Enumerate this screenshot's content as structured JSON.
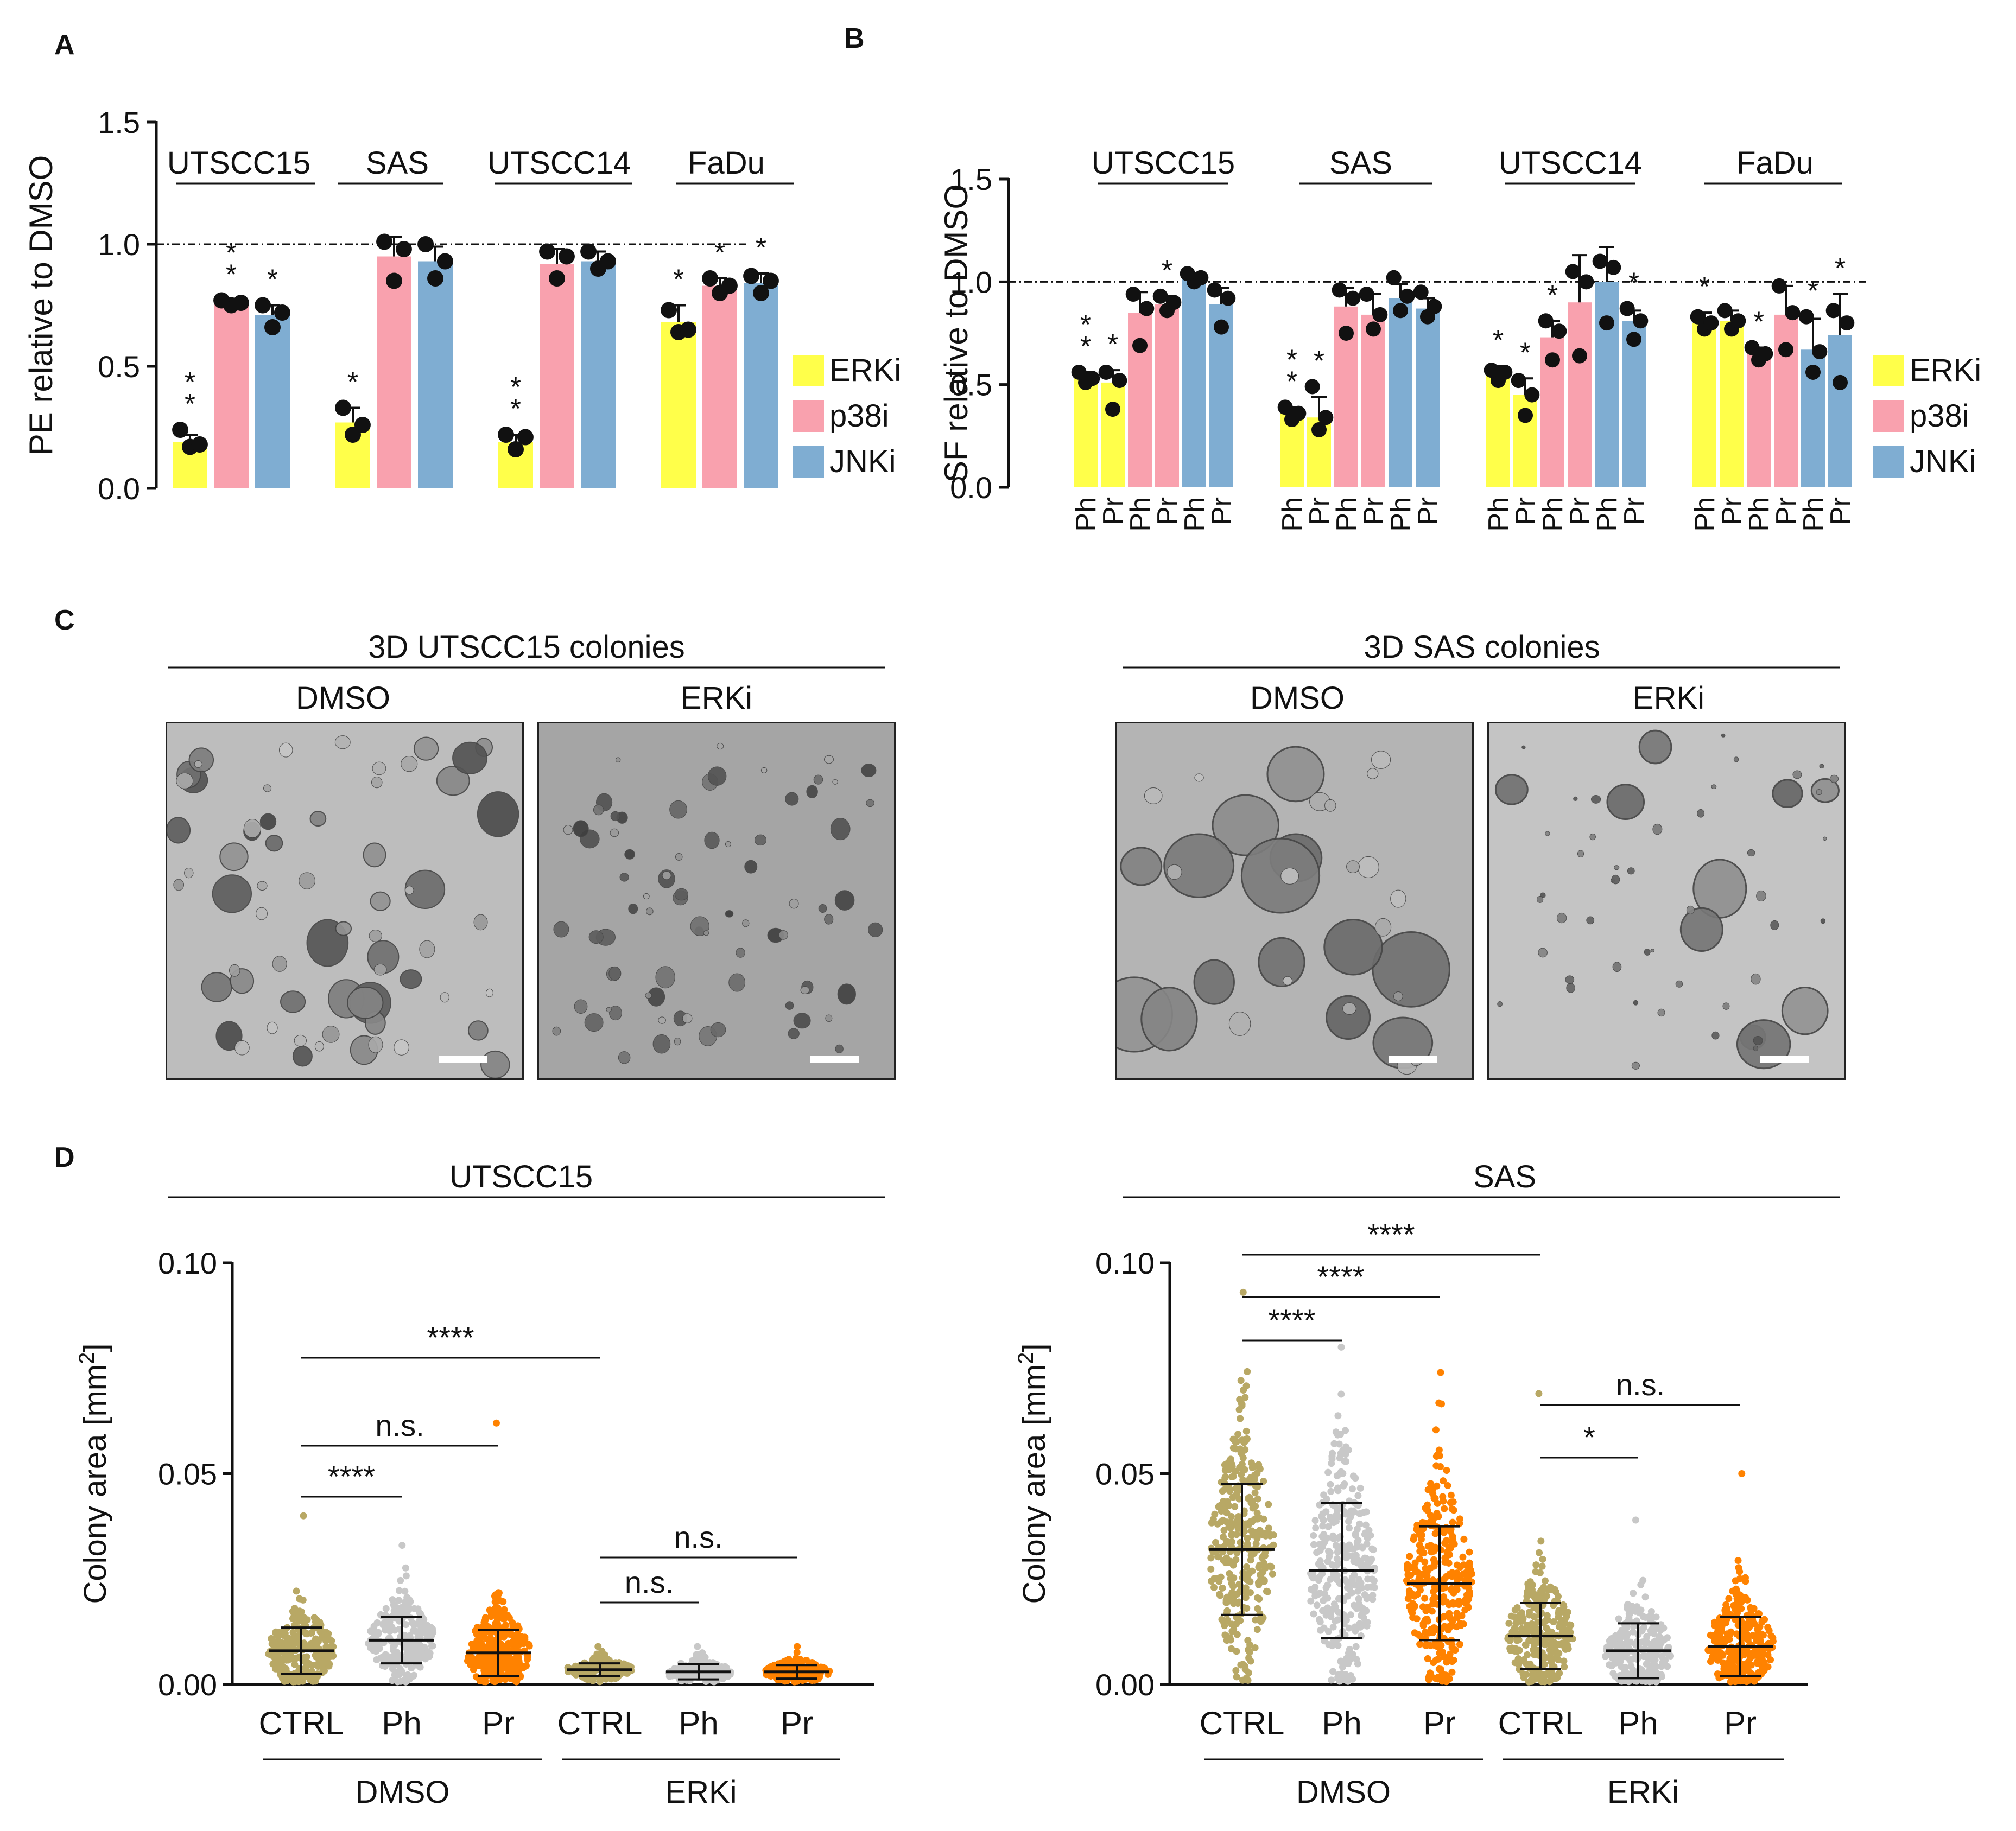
{
  "panels": {
    "a": "A",
    "b": "B",
    "c": "C",
    "d": "D"
  },
  "legend": [
    {
      "name": "ERKi",
      "color": "#ffff4a"
    },
    {
      "name": "p38i",
      "color": "#f9a1ae"
    },
    {
      "name": "JNKi",
      "color": "#7fadd2"
    }
  ],
  "colors": {
    "ctrl": "#b8a865",
    "ph": "#c8c8c8",
    "pr": "#ff8200",
    "bar_err": "#111111"
  },
  "chart_data": [
    {
      "id": "A",
      "type": "bar",
      "ylabel": "PE relative to DMSO",
      "ylim": [
        0,
        1.5
      ],
      "yticks": [
        "0.0",
        "0.5",
        "1.0",
        "1.5"
      ],
      "reference_line": 1.0,
      "groups": [
        "UTSCC15",
        "SAS",
        "UTSCC14",
        "FaDu"
      ],
      "bars": [
        {
          "group": "UTSCC15",
          "series": "ERKi",
          "value": 0.19,
          "err": 0.03,
          "points": [
            0.17,
            0.18,
            0.24
          ],
          "star": "**"
        },
        {
          "group": "UTSCC15",
          "series": "p38i",
          "value": 0.76,
          "err": 0.01,
          "points": [
            0.75,
            0.76,
            0.77
          ],
          "star": "**"
        },
        {
          "group": "UTSCC15",
          "series": "JNKi",
          "value": 0.71,
          "err": 0.04,
          "points": [
            0.66,
            0.72,
            0.75
          ],
          "star": "*"
        },
        {
          "group": "SAS",
          "series": "ERKi",
          "value": 0.27,
          "err": 0.06,
          "points": [
            0.22,
            0.26,
            0.33
          ],
          "star": "*"
        },
        {
          "group": "SAS",
          "series": "p38i",
          "value": 0.95,
          "err": 0.08,
          "points": [
            0.85,
            0.98,
            1.01
          ],
          "star": ""
        },
        {
          "group": "SAS",
          "series": "JNKi",
          "value": 0.93,
          "err": 0.06,
          "points": [
            0.86,
            0.93,
            1.0
          ],
          "star": ""
        },
        {
          "group": "UTSCC14",
          "series": "ERKi",
          "value": 0.19,
          "err": 0.03,
          "points": [
            0.16,
            0.21,
            0.22
          ],
          "star": "**"
        },
        {
          "group": "UTSCC14",
          "series": "p38i",
          "value": 0.92,
          "err": 0.06,
          "points": [
            0.86,
            0.95,
            0.97
          ],
          "star": ""
        },
        {
          "group": "UTSCC14",
          "series": "JNKi",
          "value": 0.93,
          "err": 0.04,
          "points": [
            0.9,
            0.93,
            0.97
          ],
          "star": ""
        },
        {
          "group": "FaDu",
          "series": "ERKi",
          "value": 0.68,
          "err": 0.07,
          "points": [
            0.64,
            0.65,
            0.73
          ],
          "star": "*"
        },
        {
          "group": "FaDu",
          "series": "p38i",
          "value": 0.83,
          "err": 0.03,
          "points": [
            0.8,
            0.83,
            0.86
          ],
          "star": "*"
        },
        {
          "group": "FaDu",
          "series": "JNKi",
          "value": 0.84,
          "err": 0.04,
          "points": [
            0.8,
            0.85,
            0.87
          ],
          "star": "*"
        }
      ]
    },
    {
      "id": "B",
      "type": "bar",
      "ylabel": "SF relative to DMSO",
      "ylim": [
        0,
        1.5
      ],
      "yticks": [
        "0.0",
        "0.5",
        "1.0",
        "1.5"
      ],
      "reference_line": 1.0,
      "groups": [
        "UTSCC15",
        "SAS",
        "UTSCC14",
        "FaDu"
      ],
      "bars": [
        {
          "group": "UTSCC15",
          "series": "ERKi",
          "cat": "Ph",
          "value": 0.53,
          "err": 0.03,
          "points": [
            0.51,
            0.53,
            0.56
          ],
          "star": "**"
        },
        {
          "group": "UTSCC15",
          "series": "ERKi",
          "cat": "Pr",
          "value": 0.51,
          "err": 0.06,
          "points": [
            0.38,
            0.52,
            0.56
          ],
          "star": "*"
        },
        {
          "group": "UTSCC15",
          "series": "p38i",
          "cat": "Ph",
          "value": 0.85,
          "err": 0.1,
          "points": [
            0.69,
            0.87,
            0.94
          ],
          "star": ""
        },
        {
          "group": "UTSCC15",
          "series": "p38i",
          "cat": "Pr",
          "value": 0.89,
          "err": 0.04,
          "points": [
            0.86,
            0.9,
            0.93
          ],
          "star": "*"
        },
        {
          "group": "UTSCC15",
          "series": "JNKi",
          "cat": "Ph",
          "value": 1.02,
          "err": 0.02,
          "points": [
            1.0,
            1.02,
            1.04
          ],
          "star": ""
        },
        {
          "group": "UTSCC15",
          "series": "JNKi",
          "cat": "Pr",
          "value": 0.89,
          "err": 0.08,
          "points": [
            0.78,
            0.92,
            0.96
          ],
          "star": ""
        },
        {
          "group": "SAS",
          "series": "ERKi",
          "cat": "Ph",
          "value": 0.36,
          "err": 0.03,
          "points": [
            0.33,
            0.36,
            0.39
          ],
          "star": "**"
        },
        {
          "group": "SAS",
          "series": "ERKi",
          "cat": "Pr",
          "value": 0.34,
          "err": 0.1,
          "points": [
            0.28,
            0.34,
            0.49
          ],
          "star": "*"
        },
        {
          "group": "SAS",
          "series": "p38i",
          "cat": "Ph",
          "value": 0.88,
          "err": 0.09,
          "points": [
            0.75,
            0.92,
            0.96
          ],
          "star": ""
        },
        {
          "group": "SAS",
          "series": "p38i",
          "cat": "Pr",
          "value": 0.84,
          "err": 0.1,
          "points": [
            0.77,
            0.84,
            0.94
          ],
          "star": ""
        },
        {
          "group": "SAS",
          "series": "JNKi",
          "cat": "Ph",
          "value": 0.92,
          "err": 0.07,
          "points": [
            0.86,
            0.93,
            1.02
          ],
          "star": ""
        },
        {
          "group": "SAS",
          "series": "JNKi",
          "cat": "Pr",
          "value": 0.87,
          "err": 0.05,
          "points": [
            0.83,
            0.88,
            0.95
          ],
          "star": ""
        },
        {
          "group": "UTSCC14",
          "series": "ERKi",
          "cat": "Ph",
          "value": 0.57,
          "err": 0.02,
          "points": [
            0.52,
            0.56,
            0.57
          ],
          "star": "*"
        },
        {
          "group": "UTSCC14",
          "series": "ERKi",
          "cat": "Pr",
          "value": 0.45,
          "err": 0.08,
          "points": [
            0.35,
            0.45,
            0.52
          ],
          "star": "*"
        },
        {
          "group": "UTSCC14",
          "series": "p38i",
          "cat": "Ph",
          "value": 0.73,
          "err": 0.08,
          "points": [
            0.62,
            0.76,
            0.81
          ],
          "star": "*"
        },
        {
          "group": "UTSCC14",
          "series": "p38i",
          "cat": "Pr",
          "value": 0.9,
          "err": 0.23,
          "points": [
            0.64,
            1.0,
            1.05
          ],
          "star": ""
        },
        {
          "group": "UTSCC14",
          "series": "JNKi",
          "cat": "Ph",
          "value": 1.0,
          "err": 0.17,
          "points": [
            0.8,
            1.07,
            1.1
          ],
          "star": ""
        },
        {
          "group": "UTSCC14",
          "series": "JNKi",
          "cat": "Pr",
          "value": 0.81,
          "err": 0.05,
          "points": [
            0.72,
            0.81,
            0.87
          ],
          "star": "*"
        },
        {
          "group": "FaDu",
          "series": "ERKi",
          "cat": "Ph",
          "value": 0.8,
          "err": 0.05,
          "points": [
            0.77,
            0.8,
            0.83
          ],
          "star": "*"
        },
        {
          "group": "FaDu",
          "series": "ERKi",
          "cat": "Pr",
          "value": 0.81,
          "err": 0.05,
          "points": [
            0.77,
            0.81,
            0.86
          ],
          "star": ""
        },
        {
          "group": "FaDu",
          "series": "p38i",
          "cat": "Ph",
          "value": 0.65,
          "err": 0.03,
          "points": [
            0.62,
            0.65,
            0.68
          ],
          "star": "*"
        },
        {
          "group": "FaDu",
          "series": "p38i",
          "cat": "Pr",
          "value": 0.84,
          "err": 0.14,
          "points": [
            0.67,
            0.85,
            0.98
          ],
          "star": ""
        },
        {
          "group": "FaDu",
          "series": "JNKi",
          "cat": "Ph",
          "value": 0.67,
          "err": 0.15,
          "points": [
            0.56,
            0.66,
            0.83
          ],
          "star": "*"
        },
        {
          "group": "FaDu",
          "series": "JNKi",
          "cat": "Pr",
          "value": 0.74,
          "err": 0.2,
          "points": [
            0.51,
            0.8,
            0.86
          ],
          "star": "*"
        }
      ]
    },
    {
      "id": "D-UTSCC15",
      "type": "scatter",
      "title": "UTSCC15",
      "ylabel": "Colony area [mm",
      "ylabel_sup": "2",
      "ylabel_end": "]",
      "ylim": [
        0,
        0.1
      ],
      "yticks": [
        "0.00",
        "0.05",
        "0.10"
      ],
      "categories": [
        "CTRL",
        "Ph",
        "Pr",
        "CTRL",
        "Ph",
        "Pr"
      ],
      "groups": [
        {
          "label": "DMSO"
        },
        {
          "label": "ERKi"
        }
      ],
      "columns": [
        {
          "kind": "ctrl",
          "mean": 0.008,
          "sd": 0.0055,
          "max": 0.04,
          "n": 260
        },
        {
          "kind": "ph",
          "mean": 0.0105,
          "sd": 0.0055,
          "max": 0.033,
          "n": 240
        },
        {
          "kind": "pr",
          "mean": 0.0075,
          "sd": 0.0055,
          "max": 0.062,
          "n": 300
        },
        {
          "kind": "ctrl",
          "mean": 0.0035,
          "sd": 0.0015,
          "max": 0.009,
          "n": 160
        },
        {
          "kind": "ph",
          "mean": 0.003,
          "sd": 0.0018,
          "max": 0.009,
          "n": 140
        },
        {
          "kind": "pr",
          "mean": 0.003,
          "sd": 0.0016,
          "max": 0.009,
          "n": 200
        }
      ],
      "comparisons": [
        {
          "from": 0,
          "to": 1,
          "text": "****"
        },
        {
          "from": 0,
          "to": 2,
          "text": "n.s."
        },
        {
          "from": 0,
          "to": 3,
          "text": "****"
        },
        {
          "from": 3,
          "to": 4,
          "text": "n.s."
        },
        {
          "from": 3,
          "to": 5,
          "text": "n.s."
        }
      ]
    },
    {
      "id": "D-SAS",
      "type": "scatter",
      "title": "SAS",
      "ylabel": "Colony area [mm",
      "ylabel_sup": "2",
      "ylabel_end": "]",
      "ylim": [
        0,
        0.1
      ],
      "yticks": [
        "0.00",
        "0.05",
        "0.10"
      ],
      "categories": [
        "CTRL",
        "Ph",
        "Pr",
        "CTRL",
        "Ph",
        "Pr"
      ],
      "groups": [
        {
          "label": "DMSO"
        },
        {
          "label": "ERKi"
        }
      ],
      "columns": [
        {
          "kind": "ctrl",
          "mean": 0.032,
          "sd": 0.0155,
          "max": 0.093,
          "n": 320
        },
        {
          "kind": "ph",
          "mean": 0.027,
          "sd": 0.016,
          "max": 0.08,
          "n": 320
        },
        {
          "kind": "pr",
          "mean": 0.024,
          "sd": 0.0135,
          "max": 0.074,
          "n": 320
        },
        {
          "kind": "ctrl",
          "mean": 0.0115,
          "sd": 0.0078,
          "max": 0.069,
          "n": 260
        },
        {
          "kind": "ph",
          "mean": 0.008,
          "sd": 0.0065,
          "max": 0.039,
          "n": 240
        },
        {
          "kind": "pr",
          "mean": 0.009,
          "sd": 0.007,
          "max": 0.05,
          "n": 260
        }
      ],
      "comparisons": [
        {
          "from": 0,
          "to": 1,
          "text": "****"
        },
        {
          "from": 0,
          "to": 2,
          "text": "****"
        },
        {
          "from": 0,
          "to": 3,
          "text": "****"
        },
        {
          "from": 3,
          "to": 4,
          "text": "*"
        },
        {
          "from": 3,
          "to": 5,
          "text": "n.s."
        }
      ]
    }
  ],
  "panel_c": {
    "groups": [
      {
        "title": "3D UTSCC15 colonies",
        "labels": [
          "DMSO",
          "ERKi"
        ]
      },
      {
        "title": "3D SAS colonies",
        "labels": [
          "DMSO",
          "ERKi"
        ]
      }
    ]
  }
}
